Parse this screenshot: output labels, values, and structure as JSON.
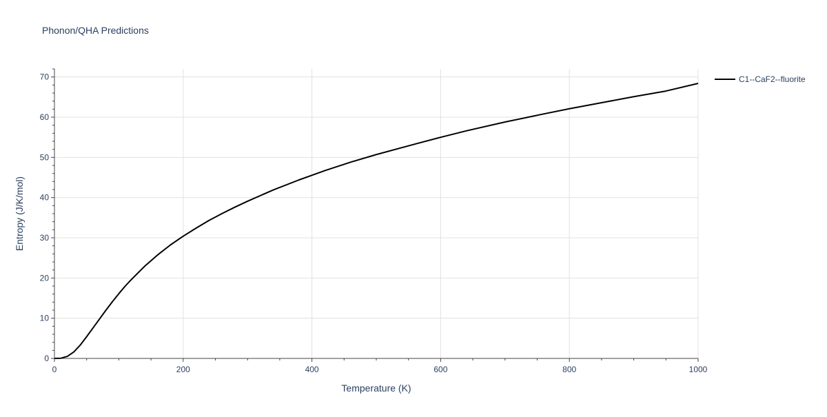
{
  "chart_data": {
    "type": "line",
    "title": "Phonon/QHA Predictions",
    "xlabel": "Temperature (K)",
    "ylabel": "Entropy (J/K/mol)",
    "xlim": [
      0,
      1000
    ],
    "ylim": [
      0,
      72
    ],
    "xticks": [
      0,
      200,
      400,
      600,
      800,
      1000
    ],
    "yticks": [
      0,
      10,
      20,
      30,
      40,
      50,
      60,
      70
    ],
    "grid": true,
    "legend_position": "top-right",
    "series": [
      {
        "name": "C1--CaF2--fluorite",
        "color": "#000000",
        "x": [
          0,
          10,
          20,
          30,
          40,
          50,
          60,
          70,
          80,
          90,
          100,
          110,
          120,
          140,
          160,
          180,
          200,
          220,
          240,
          260,
          280,
          300,
          340,
          380,
          420,
          460,
          500,
          560,
          600,
          640,
          700,
          760,
          800,
          850,
          900,
          950,
          1000
        ],
        "y": [
          0,
          0.05,
          0.5,
          1.6,
          3.3,
          5.4,
          7.6,
          9.8,
          12.0,
          14.1,
          16.1,
          18.0,
          19.7,
          22.9,
          25.7,
          28.2,
          30.4,
          32.4,
          34.3,
          36.0,
          37.6,
          39.1,
          41.9,
          44.4,
          46.7,
          48.8,
          50.7,
          53.3,
          55.0,
          56.6,
          58.8,
          60.8,
          62.1,
          63.6,
          65.1,
          66.5,
          68.4
        ]
      }
    ]
  }
}
